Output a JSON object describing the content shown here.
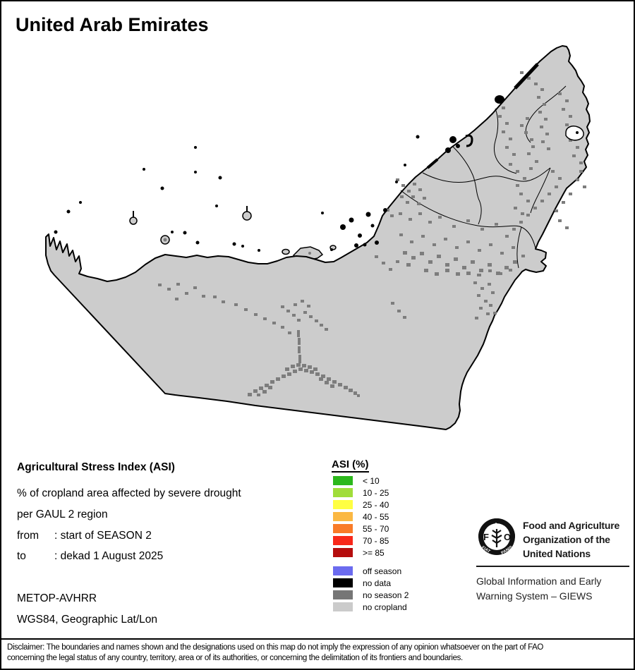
{
  "title": "United Arab Emirates",
  "colors": {
    "land": "#cccccc",
    "patch": "#7d7d7d",
    "outline": "#000000",
    "sea": "#ffffff"
  },
  "info": {
    "heading": "Agricultural Stress Index (ASI)",
    "line1": "% of cropland area affected by severe drought",
    "line2": "per GAUL 2 region",
    "from_label": "from",
    "from_value": ": start of SEASON 2",
    "to_label": "to",
    "to_value": ": dekad 1 August 2025",
    "sensor": "METOP-AVHRR",
    "projection": "WGS84, Geographic Lat/Lon"
  },
  "legend": {
    "title": "ASI (%)",
    "classes": [
      {
        "label": "< 10",
        "color": "#2cb81c"
      },
      {
        "label": "10 - 25",
        "color": "#a0dd3a"
      },
      {
        "label": "25 - 40",
        "color": "#ffff42"
      },
      {
        "label": "40 - 55",
        "color": "#fbb843"
      },
      {
        "label": "55 - 70",
        "color": "#f97b28"
      },
      {
        "label": "70 - 85",
        "color": "#f8281a"
      },
      {
        "label": ">= 85",
        "color": "#b50d0d"
      }
    ],
    "status": [
      {
        "label": "off season",
        "color": "#6b6bef"
      },
      {
        "label": "no data",
        "color": "#000000"
      },
      {
        "label": "no season 2",
        "color": "#767676"
      },
      {
        "label": "no cropland",
        "color": "#cbcbcb"
      }
    ]
  },
  "fao": {
    "logo_letters_f": "F",
    "logo_letters_a": "A",
    "logo_letters_o": "O",
    "motto_left": "FIAT",
    "motto_right": "PANIS",
    "org_line1": "Food and Agriculture",
    "org_line2": "Organization of the",
    "org_line3": "United Nations",
    "giews_line1": "Global Information and Early",
    "giews_line2": "Warning System – GIEWS"
  },
  "disclaimer": {
    "line1": "Disclaimer: The boundaries and names shown and the designations used on this map do not imply the expression of any opinion whatsoever on the part of FAO",
    "line2": "concerning the legal status of any country, territory, area or of its authorities, or concerning the delimitation of its frontiers and boundaries."
  }
}
